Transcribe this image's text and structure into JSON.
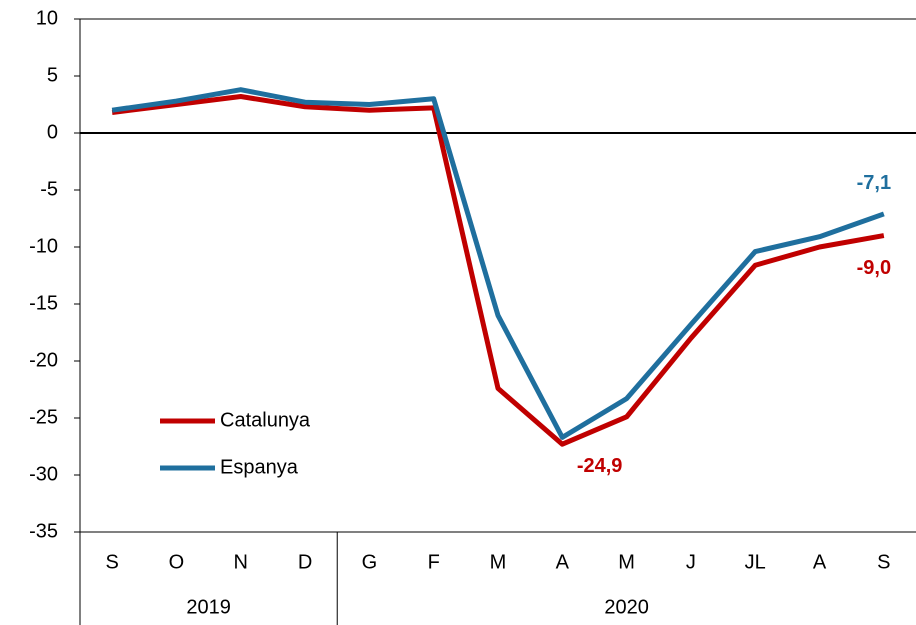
{
  "chart_data": {
    "type": "line",
    "categories": [
      "S",
      "O",
      "N",
      "D",
      "G",
      "F",
      "M",
      "A",
      "M",
      "J",
      "JL",
      "A",
      "S"
    ],
    "groups": [
      {
        "label": "2019",
        "span": [
          0,
          3
        ]
      },
      {
        "label": "2020",
        "span": [
          4,
          12
        ]
      }
    ],
    "series": [
      {
        "name": "Catalunya",
        "color": "#c00000",
        "values": [
          1.8,
          2.5,
          3.2,
          2.3,
          2.0,
          2.2,
          -22.4,
          -27.3,
          -24.9,
          -18.0,
          -11.6,
          -10.0,
          -9.0
        ],
        "value_labels": [
          null,
          null,
          null,
          null,
          null,
          null,
          null,
          null,
          "-24,9",
          null,
          null,
          null,
          "-9,0"
        ]
      },
      {
        "name": "Espanya",
        "color": "#1f6f9e",
        "values": [
          2.0,
          2.8,
          3.8,
          2.7,
          2.5,
          3.0,
          -16.0,
          -26.7,
          -23.3,
          -16.8,
          -10.4,
          -9.1,
          -7.1
        ],
        "value_labels": [
          null,
          null,
          null,
          null,
          null,
          null,
          null,
          null,
          null,
          null,
          null,
          null,
          "-7,1"
        ]
      }
    ],
    "ylim": [
      -35,
      10
    ],
    "yticks": [
      -35,
      -30,
      -25,
      -20,
      -15,
      -10,
      -5,
      0,
      5,
      10
    ],
    "legend": "lower-left"
  }
}
